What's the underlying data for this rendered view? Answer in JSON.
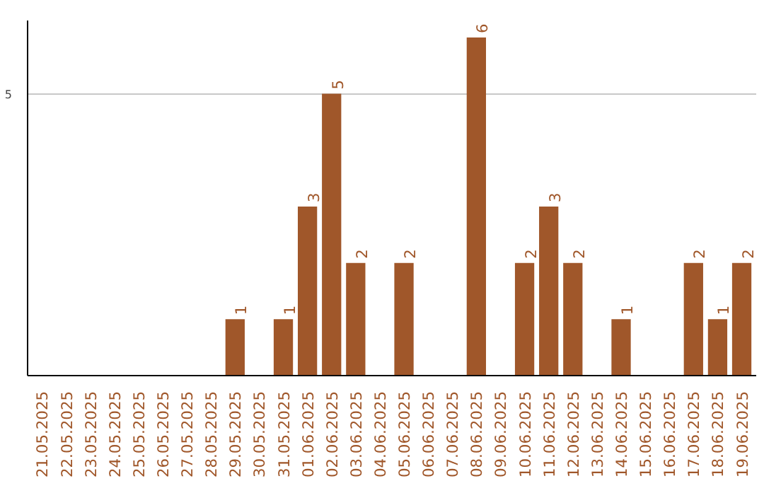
{
  "chart_data": {
    "type": "bar",
    "categories": [
      "21.05.2025",
      "22.05.2025",
      "23.05.2025",
      "24.05.2025",
      "25.05.2025",
      "26.05.2025",
      "27.05.2025",
      "28.05.2025",
      "29.05.2025",
      "30.05.2025",
      "31.05.2025",
      "01.06.2025",
      "02.06.2025",
      "03.06.2025",
      "04.06.2025",
      "05.06.2025",
      "06.06.2025",
      "07.06.2025",
      "08.06.2025",
      "09.06.2025",
      "10.06.2025",
      "11.06.2025",
      "12.06.2025",
      "13.06.2025",
      "14.06.2025",
      "15.06.2025",
      "16.06.2025",
      "17.06.2025",
      "18.06.2025",
      "19.06.2025"
    ],
    "values": [
      0,
      0,
      0,
      0,
      0,
      0,
      0,
      0,
      1,
      0,
      1,
      3,
      5,
      2,
      0,
      2,
      0,
      0,
      6,
      0,
      2,
      3,
      2,
      0,
      1,
      0,
      0,
      2,
      1,
      2
    ],
    "value_labels": [
      null,
      null,
      null,
      null,
      null,
      null,
      null,
      null,
      "1",
      null,
      "1",
      "3",
      "5",
      "2",
      null,
      "2",
      null,
      null,
      "6",
      null,
      "2",
      "3",
      "2",
      null,
      "1",
      null,
      null,
      "2",
      "1",
      "2"
    ],
    "color": "#a0572a",
    "ylim": [
      0,
      6.3
    ],
    "yticks": [
      5
    ],
    "grid": "y"
  }
}
